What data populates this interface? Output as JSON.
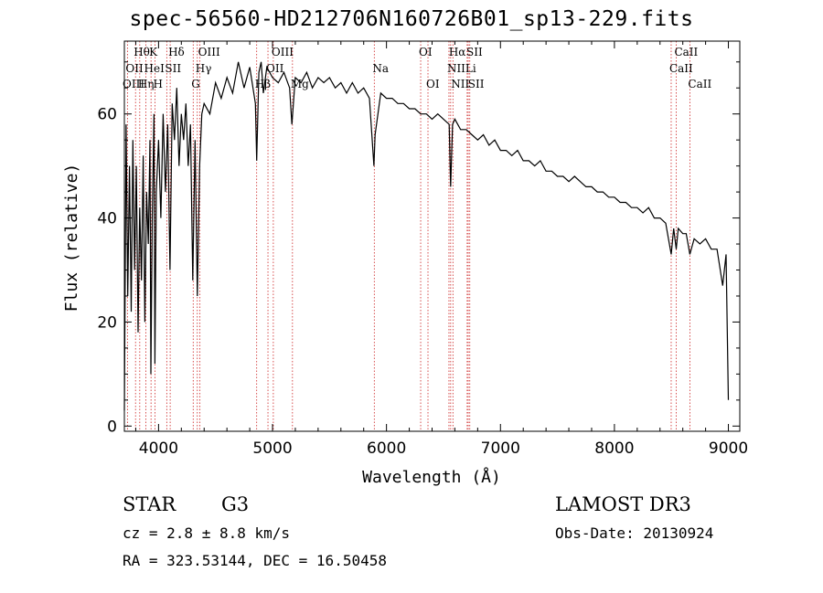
{
  "chart_data": {
    "type": "line",
    "title": "spec-56560-HD212706N160726B01_sp13-229.fits",
    "xlabel": "Wavelength (Å)",
    "ylabel": "Flux (relative)",
    "xlim": [
      3700,
      9100
    ],
    "ylim": [
      -1,
      74
    ],
    "xticks": [
      4000,
      5000,
      6000,
      7000,
      8000,
      9000
    ],
    "xtick_labels": [
      "4000",
      "5000",
      "6000",
      "7000",
      "8000",
      "9000"
    ],
    "yticks": [
      0,
      20,
      40,
      60
    ],
    "ytick_labels": [
      "0",
      "20",
      "40",
      "60"
    ],
    "series": [
      {
        "name": "flux",
        "color": "#000000",
        "points": [
          [
            3700,
            3
          ],
          [
            3715,
            58
          ],
          [
            3730,
            25
          ],
          [
            3745,
            50
          ],
          [
            3760,
            22
          ],
          [
            3775,
            55
          ],
          [
            3790,
            30
          ],
          [
            3805,
            50
          ],
          [
            3820,
            18
          ],
          [
            3835,
            42
          ],
          [
            3850,
            28
          ],
          [
            3865,
            52
          ],
          [
            3880,
            20
          ],
          [
            3895,
            45
          ],
          [
            3910,
            35
          ],
          [
            3925,
            55
          ],
          [
            3933,
            10
          ],
          [
            3945,
            40
          ],
          [
            3960,
            60
          ],
          [
            3968,
            12
          ],
          [
            3980,
            45
          ],
          [
            4000,
            55
          ],
          [
            4020,
            40
          ],
          [
            4040,
            60
          ],
          [
            4060,
            45
          ],
          [
            4080,
            58
          ],
          [
            4100,
            30
          ],
          [
            4120,
            62
          ],
          [
            4140,
            55
          ],
          [
            4160,
            65
          ],
          [
            4180,
            50
          ],
          [
            4200,
            60
          ],
          [
            4220,
            55
          ],
          [
            4240,
            62
          ],
          [
            4260,
            50
          ],
          [
            4280,
            58
          ],
          [
            4300,
            28
          ],
          [
            4320,
            55
          ],
          [
            4340,
            25
          ],
          [
            4360,
            50
          ],
          [
            4380,
            60
          ],
          [
            4400,
            62
          ],
          [
            4450,
            60
          ],
          [
            4500,
            66
          ],
          [
            4550,
            63
          ],
          [
            4600,
            67
          ],
          [
            4650,
            64
          ],
          [
            4700,
            70
          ],
          [
            4750,
            65
          ],
          [
            4800,
            69
          ],
          [
            4850,
            62
          ],
          [
            4861,
            51
          ],
          [
            4880,
            68
          ],
          [
            4900,
            70
          ],
          [
            4920,
            64
          ],
          [
            4950,
            69
          ],
          [
            5000,
            67
          ],
          [
            5050,
            66
          ],
          [
            5100,
            68
          ],
          [
            5150,
            65
          ],
          [
            5170,
            58
          ],
          [
            5200,
            67
          ],
          [
            5250,
            66
          ],
          [
            5300,
            68
          ],
          [
            5350,
            65
          ],
          [
            5400,
            67
          ],
          [
            5450,
            66
          ],
          [
            5500,
            67
          ],
          [
            5550,
            65
          ],
          [
            5600,
            66
          ],
          [
            5650,
            64
          ],
          [
            5700,
            66
          ],
          [
            5750,
            64
          ],
          [
            5800,
            65
          ],
          [
            5850,
            63
          ],
          [
            5890,
            50
          ],
          [
            5900,
            56
          ],
          [
            5950,
            64
          ],
          [
            6000,
            63
          ],
          [
            6050,
            63
          ],
          [
            6100,
            62
          ],
          [
            6150,
            62
          ],
          [
            6200,
            61
          ],
          [
            6250,
            61
          ],
          [
            6300,
            60
          ],
          [
            6350,
            60
          ],
          [
            6400,
            59
          ],
          [
            6450,
            60
          ],
          [
            6500,
            59
          ],
          [
            6550,
            58
          ],
          [
            6563,
            46
          ],
          [
            6580,
            58
          ],
          [
            6600,
            59
          ],
          [
            6650,
            57
          ],
          [
            6700,
            57
          ],
          [
            6750,
            56
          ],
          [
            6800,
            55
          ],
          [
            6850,
            56
          ],
          [
            6900,
            54
          ],
          [
            6950,
            55
          ],
          [
            7000,
            53
          ],
          [
            7050,
            53
          ],
          [
            7100,
            52
          ],
          [
            7150,
            53
          ],
          [
            7200,
            51
          ],
          [
            7250,
            51
          ],
          [
            7300,
            50
          ],
          [
            7350,
            51
          ],
          [
            7400,
            49
          ],
          [
            7450,
            49
          ],
          [
            7500,
            48
          ],
          [
            7550,
            48
          ],
          [
            7600,
            47
          ],
          [
            7650,
            48
          ],
          [
            7700,
            47
          ],
          [
            7750,
            46
          ],
          [
            7800,
            46
          ],
          [
            7850,
            45
          ],
          [
            7900,
            45
          ],
          [
            7950,
            44
          ],
          [
            8000,
            44
          ],
          [
            8050,
            43
          ],
          [
            8100,
            43
          ],
          [
            8150,
            42
          ],
          [
            8200,
            42
          ],
          [
            8250,
            41
          ],
          [
            8300,
            42
          ],
          [
            8350,
            40
          ],
          [
            8400,
            40
          ],
          [
            8450,
            39
          ],
          [
            8498,
            33
          ],
          [
            8520,
            38
          ],
          [
            8542,
            34
          ],
          [
            8560,
            38
          ],
          [
            8600,
            37
          ],
          [
            8630,
            37
          ],
          [
            8662,
            33
          ],
          [
            8700,
            36
          ],
          [
            8750,
            35
          ],
          [
            8800,
            36
          ],
          [
            8850,
            34
          ],
          [
            8900,
            34
          ],
          [
            8950,
            27
          ],
          [
            8980,
            33
          ],
          [
            9000,
            5
          ]
        ]
      }
    ],
    "line_markers": [
      {
        "label": "Hθ",
        "wavelength": 3798,
        "row": 1
      },
      {
        "label": "K",
        "wavelength": 3934,
        "row": 1
      },
      {
        "label": "Hδ",
        "wavelength": 4102,
        "row": 1
      },
      {
        "label": "OIII",
        "wavelength": 4363,
        "row": 1
      },
      {
        "label": "OIII",
        "wavelength": 5007,
        "row": 1
      },
      {
        "label": "OI",
        "wavelength": 6300,
        "row": 1
      },
      {
        "label": "Hα",
        "wavelength": 6563,
        "row": 1
      },
      {
        "label": "SII",
        "wavelength": 6717,
        "row": 1
      },
      {
        "label": "CaII",
        "wavelength": 8542,
        "row": 1
      },
      {
        "label": "OII",
        "wavelength": 3727,
        "row": 2
      },
      {
        "label": "HeI",
        "wavelength": 3889,
        "row": 2
      },
      {
        "label": "SII",
        "wavelength": 4072,
        "row": 2
      },
      {
        "label": "Hγ",
        "wavelength": 4340,
        "row": 2
      },
      {
        "label": "OII",
        "wavelength": 4960,
        "row": 2
      },
      {
        "label": "Na",
        "wavelength": 5893,
        "row": 2
      },
      {
        "label": "NII",
        "wavelength": 6548,
        "row": 2
      },
      {
        "label": "Li",
        "wavelength": 6708,
        "row": 2
      },
      {
        "label": "CaII",
        "wavelength": 8498,
        "row": 2
      },
      {
        "label": "OIII",
        "wavelength": 3700,
        "row": 3
      },
      {
        "label": "Hη",
        "wavelength": 3835,
        "row": 3
      },
      {
        "label": "H",
        "wavelength": 3969,
        "row": 3
      },
      {
        "label": "G",
        "wavelength": 4304,
        "row": 3
      },
      {
        "label": "Hβ",
        "wavelength": 4861,
        "row": 3
      },
      {
        "label": "Mg",
        "wavelength": 5175,
        "row": 3
      },
      {
        "label": "OI",
        "wavelength": 6364,
        "row": 3
      },
      {
        "label": "NII",
        "wavelength": 6583,
        "row": 3
      },
      {
        "label": "SII",
        "wavelength": 6731,
        "row": 3
      },
      {
        "label": "CaII",
        "wavelength": 8662,
        "row": 3
      }
    ]
  },
  "info": {
    "object_class": "STAR",
    "subclass": "G3",
    "survey": "LAMOST DR3",
    "cz": "cz = 2.8 ± 8.8 km/s",
    "obs_date": "Obs-Date: 20130924",
    "coords": "RA = 323.53144, DEC =  16.50458"
  },
  "colors": {
    "spectrum": "#000000",
    "line_marker": "#cc2222",
    "axis": "#000000"
  }
}
